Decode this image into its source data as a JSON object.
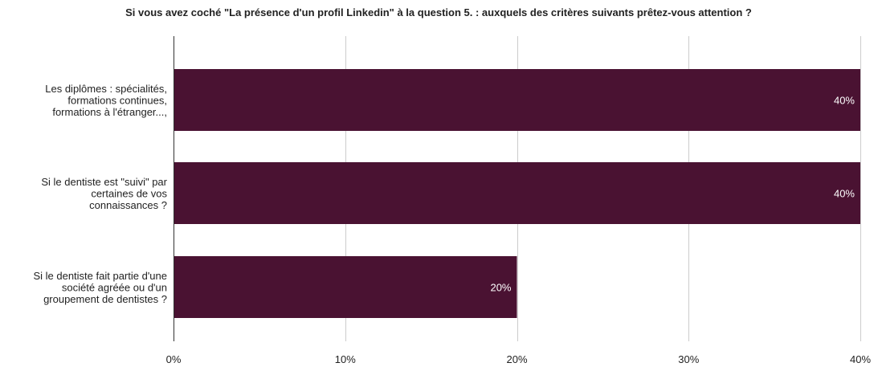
{
  "chart_data": {
    "type": "bar",
    "orientation": "horizontal",
    "title": "Si vous avez coché \"La présence d'un profil Linkedin\" à la question 5. : auxquels des critères suivants prêtez-vous attention ?",
    "categories": [
      [
        "Les diplômes : spécialités,",
        "formations continues,",
        "formations à l'étranger...,"
      ],
      [
        "Si le dentiste est \"suivi\" par",
        "certaines de vos",
        "connaissances ?"
      ],
      [
        "Si le dentiste fait partie d'une",
        "société agréée ou d'un",
        "groupement de dentistes ?"
      ]
    ],
    "values": [
      40,
      40,
      20
    ],
    "data_labels": [
      "40%",
      "40%",
      "20%"
    ],
    "xlim": [
      0,
      40
    ],
    "ticks": [
      0,
      10,
      20,
      30,
      40
    ],
    "tick_labels": [
      "0%",
      "10%",
      "20%",
      "30%",
      "40%"
    ],
    "grid": true,
    "bar_color": "#4a1232"
  }
}
